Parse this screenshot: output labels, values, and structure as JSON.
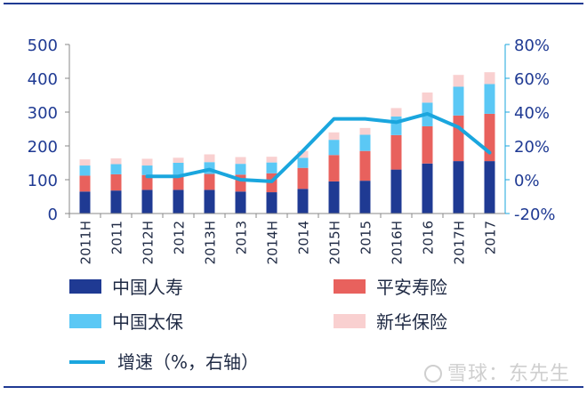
{
  "chart_data": {
    "type": "bar",
    "stacked": true,
    "categories": [
      "2011H",
      "2011",
      "2012H",
      "2012",
      "2013H",
      "2013",
      "2014H",
      "2014",
      "2015H",
      "2015",
      "2016H",
      "2016",
      "2017H",
      "2017"
    ],
    "series": [
      {
        "name": "中国人寿",
        "color": "#1F3A93",
        "values": [
          65,
          68,
          70,
          70,
          70,
          65,
          63,
          73,
          95,
          97,
          130,
          148,
          155,
          155
        ]
      },
      {
        "name": "平安寿险",
        "color": "#E8615D",
        "values": [
          47,
          48,
          44,
          45,
          47,
          50,
          56,
          62,
          78,
          88,
          102,
          110,
          135,
          140
        ]
      },
      {
        "name": "中国太保",
        "color": "#5BC8F5",
        "values": [
          30,
          30,
          28,
          35,
          35,
          32,
          32,
          30,
          45,
          48,
          55,
          70,
          85,
          88
        ]
      },
      {
        "name": "新华保险",
        "color": "#F9D0D0",
        "values": [
          18,
          17,
          20,
          15,
          23,
          20,
          17,
          20,
          22,
          20,
          25,
          30,
          35,
          35
        ]
      }
    ],
    "line": {
      "name": "增速（%，右轴）",
      "color": "#1AA6DE",
      "axis": "right",
      "values": [
        null,
        null,
        2,
        2,
        6,
        0,
        -1,
        17,
        36,
        36,
        34,
        39,
        31,
        16
      ]
    },
    "y_left": {
      "min": 0,
      "max": 500,
      "ticks": [
        0,
        100,
        200,
        300,
        400,
        500
      ]
    },
    "y_right": {
      "min": -20,
      "max": 80,
      "ticks": [
        "-20%",
        "0%",
        "20%",
        "40%",
        "60%",
        "80%"
      ]
    },
    "grid": false,
    "legend_position": "bottom"
  },
  "watermark": "雪球：东先生",
  "colors": {
    "axis_left": "#1F3A93",
    "axis_right": "#1AA6DE",
    "frame": "#1F3A93"
  }
}
